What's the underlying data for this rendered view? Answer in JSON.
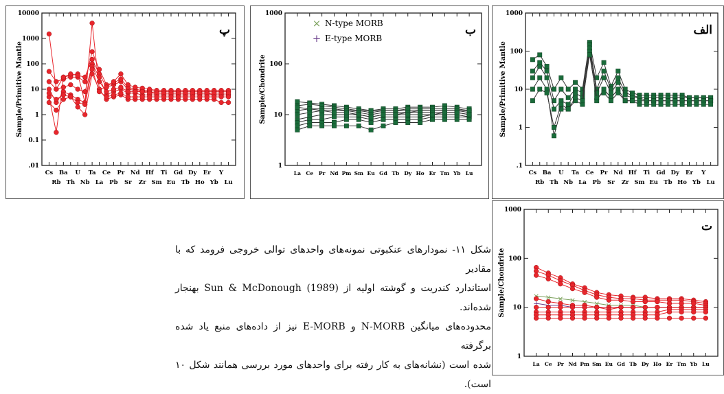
{
  "caption": {
    "lines": [
      "شکل ۱۱- نمودارهای عنکبوتی نمونه‌های واحدهای توالی خروجی فرومد که با مقادیر",
      "استاندارد کندریت و گوشته اولیه از (1989) Sun & McDonough بهنجار شده‌اند.",
      "محدوده‌های میانگین N-MORB و E-MORB نیز از داده‌های منبع یاد شده برگرفته",
      "شده است (نشانه‌های به کار رفته برای واحدهای مورد بررسی همانند شکل ۱۰ است)."
    ]
  },
  "colors": {
    "red": "#e8262c",
    "green": "#1a6b3a",
    "purple": "#6a3d8a",
    "lightgreen": "#7aa05a"
  },
  "chart_data": [
    {
      "id": "pe",
      "panel_letter": "پ",
      "type": "line",
      "ylabel": "Sample/Primitive Mantle",
      "yscale": "log",
      "ylim": [
        0.01,
        10000
      ],
      "ytick_labels": [
        ".01",
        "0.1",
        "1",
        "10",
        "100",
        "1000",
        "10000"
      ],
      "elements_top": [
        "Cs",
        "Ba",
        "U",
        "Ta",
        "Ce",
        "Pr",
        "Nd",
        "Hf",
        "Ti",
        "Gd",
        "Dy",
        "Er",
        "Y"
      ],
      "elements_bottom": [
        "Rb",
        "Th",
        "Nb",
        "La",
        "Pb",
        "Sr",
        "Zr",
        "Sm",
        "Eu",
        "Tb",
        "Ho",
        "Yb",
        "Lu"
      ],
      "marker": "circle",
      "color": "red",
      "series": [
        {
          "values": [
            1500,
            10,
            30,
            35,
            40,
            3,
            4000,
            10,
            12,
            15,
            20,
            10,
            9,
            8,
            8,
            7,
            7,
            7,
            7,
            7,
            7,
            7,
            7,
            6,
            6,
            6
          ]
        },
        {
          "values": [
            50,
            20,
            25,
            30,
            30,
            20,
            300,
            60,
            15,
            18,
            25,
            12,
            10,
            9,
            9,
            8,
            8,
            8,
            8,
            8,
            8,
            8,
            8,
            8,
            8,
            8
          ]
        },
        {
          "values": [
            5,
            0.2,
            30,
            40,
            35,
            30,
            150,
            40,
            12,
            20,
            40,
            15,
            12,
            11,
            10,
            9,
            9,
            9,
            9,
            9,
            9,
            9,
            9,
            9,
            9,
            9
          ]
        },
        {
          "values": [
            10,
            3,
            8,
            6,
            4,
            3,
            100,
            30,
            6,
            8,
            10,
            7,
            7,
            6,
            6,
            6,
            6,
            6,
            6,
            6,
            6,
            6,
            6,
            6,
            6,
            6
          ]
        },
        {
          "values": [
            20,
            10,
            12,
            15,
            10,
            8,
            80,
            20,
            8,
            10,
            12,
            8,
            8,
            8,
            7,
            7,
            7,
            7,
            7,
            7,
            7,
            7,
            7,
            7,
            7,
            7
          ]
        },
        {
          "values": [
            3,
            1.5,
            4,
            5,
            2,
            1,
            40,
            10,
            4,
            5,
            6,
            4,
            4,
            4,
            4,
            4,
            4,
            4,
            4,
            4,
            4,
            4,
            4,
            4,
            3,
            3
          ]
        },
        {
          "values": [
            7,
            4,
            6,
            5,
            3,
            2.5,
            60,
            8,
            5,
            6,
            7,
            5,
            5,
            5,
            5,
            5,
            5,
            5,
            5,
            5,
            5,
            5,
            5,
            5,
            5,
            5
          ]
        }
      ]
    },
    {
      "id": "be",
      "panel_letter": "ب",
      "type": "line",
      "ylabel": "Sample/Chondrite",
      "yscale": "log",
      "ylim": [
        1,
        1000
      ],
      "ytick_labels": [
        "1",
        "10",
        "100",
        "1000"
      ],
      "elements": [
        "La",
        "Ce",
        "Pr",
        "Nd",
        "Pm",
        "Sm",
        "Eu",
        "Gd",
        "Tb",
        "Dy",
        "Ho",
        "Er",
        "Tm",
        "Yb",
        "Lu"
      ],
      "legend": [
        {
          "label": "N-type MORB",
          "symbol": "×",
          "color": "lightgreen"
        },
        {
          "label": "E-type MORB",
          "symbol": "+",
          "color": "purple"
        }
      ],
      "marker": "square",
      "color": "green",
      "series": [
        {
          "values": [
            18,
            17,
            16,
            15,
            14,
            13,
            12,
            13,
            13,
            14,
            14,
            14,
            15,
            14,
            13
          ]
        },
        {
          "values": [
            15,
            16,
            15,
            14,
            13,
            12,
            11,
            12,
            12,
            12,
            12,
            12,
            12,
            12,
            11
          ]
        },
        {
          "values": [
            12,
            13,
            13,
            13,
            12,
            12,
            12,
            12,
            12,
            13,
            13,
            13,
            13,
            13,
            12
          ]
        },
        {
          "values": [
            10,
            11,
            12,
            12,
            12,
            11,
            10,
            11,
            11,
            11,
            12,
            12,
            12,
            12,
            12
          ]
        },
        {
          "values": [
            8,
            9,
            10,
            10,
            10,
            10,
            9,
            10,
            10,
            11,
            11,
            11,
            11,
            11,
            10
          ]
        },
        {
          "values": [
            7,
            8,
            8,
            9,
            9,
            9,
            8,
            9,
            9,
            9,
            9,
            10,
            10,
            10,
            9
          ]
        },
        {
          "values": [
            6,
            7,
            7,
            7,
            8,
            8,
            7,
            8,
            8,
            8,
            8,
            9,
            9,
            9,
            9
          ]
        },
        {
          "values": [
            5,
            6,
            6,
            6,
            6,
            6,
            5,
            6,
            7,
            7,
            7,
            8,
            8,
            8,
            8
          ]
        },
        {
          "values": [
            14,
            13,
            12,
            11,
            11,
            10,
            9,
            10,
            10,
            10,
            10,
            10,
            11,
            11,
            10
          ]
        }
      ]
    },
    {
      "id": "alef",
      "panel_letter": "الف",
      "type": "line",
      "ylabel": "Sample/Primitive Mantle",
      "yscale": "log",
      "ylim": [
        0.1,
        1000
      ],
      "ytick_labels": [
        ".1",
        "1",
        "10",
        "100",
        "1000"
      ],
      "elements_top": [
        "Cs",
        "Ba",
        "U",
        "Ta",
        "Ce",
        "Pr",
        "Nd",
        "Hf",
        "Ti",
        "Gd",
        "Dy",
        "Er",
        "Y"
      ],
      "elements_bottom": [
        "Rb",
        "Th",
        "Nb",
        "La",
        "Pb",
        "Sr",
        "Zr",
        "Sm",
        "Eu",
        "Tb",
        "Ho",
        "Yb",
        "Lu"
      ],
      "marker": "square",
      "color": "green",
      "series": [
        {
          "values": [
            60,
            80,
            40,
            10,
            20,
            10,
            15,
            10,
            170,
            20,
            50,
            12,
            30,
            10,
            8,
            7,
            7,
            7,
            7,
            7,
            7,
            7,
            6,
            6,
            6,
            6
          ]
        },
        {
          "values": [
            30,
            50,
            30,
            5,
            10,
            6,
            10,
            8,
            150,
            10,
            30,
            10,
            20,
            8,
            7,
            6,
            6,
            6,
            6,
            6,
            6,
            6,
            6,
            6,
            6,
            6
          ]
        },
        {
          "values": [
            20,
            40,
            20,
            3,
            5,
            4,
            8,
            6,
            120,
            8,
            20,
            8,
            15,
            7,
            6,
            6,
            5,
            5,
            5,
            5,
            5,
            5,
            5,
            5,
            5,
            5
          ]
        },
        {
          "values": [
            10,
            20,
            10,
            0.6,
            3,
            3,
            5,
            4,
            100,
            5,
            10,
            6,
            10,
            5,
            5,
            5,
            5,
            5,
            5,
            5,
            5,
            5,
            5,
            5,
            5,
            5
          ]
        },
        {
          "values": [
            5,
            10,
            8,
            1,
            4,
            3,
            6,
            5,
            80,
            6,
            8,
            5,
            8,
            5,
            5,
            4,
            4,
            4,
            4,
            4,
            4,
            4,
            4,
            4,
            4,
            4
          ]
        }
      ]
    },
    {
      "id": "te",
      "panel_letter": "ت",
      "type": "line",
      "ylabel": "Sample/Chondrite",
      "yscale": "log",
      "ylim": [
        1,
        1000
      ],
      "ytick_labels": [
        "1",
        "10",
        "100",
        "1000"
      ],
      "elements": [
        "La",
        "Ce",
        "Pr",
        "Nd",
        "Pm",
        "Sm",
        "Eu",
        "Gd",
        "Tb",
        "Dy",
        "Ho",
        "Er",
        "Tm",
        "Yb",
        "Lu"
      ],
      "marker": "circle",
      "color": "red",
      "series": [
        {
          "values": [
            65,
            50,
            40,
            30,
            25,
            20,
            18,
            17,
            16,
            16,
            15,
            15,
            15,
            14,
            13
          ]
        },
        {
          "values": [
            55,
            45,
            35,
            28,
            22,
            18,
            16,
            15,
            15,
            14,
            14,
            14,
            14,
            13,
            12
          ]
        },
        {
          "values": [
            45,
            38,
            30,
            24,
            20,
            16,
            14,
            14,
            13,
            13,
            13,
            12,
            12,
            12,
            11
          ]
        },
        {
          "values": [
            15,
            13,
            12,
            11,
            11,
            10,
            10,
            10,
            10,
            10,
            10,
            10,
            10,
            10,
            10
          ]
        },
        {
          "values": [
            10,
            10,
            10,
            10,
            10,
            10,
            9,
            10,
            10,
            10,
            10,
            10,
            10,
            10,
            10
          ]
        },
        {
          "values": [
            8,
            8,
            8,
            8,
            8,
            8,
            8,
            8,
            8,
            8,
            8,
            9,
            9,
            9,
            9
          ]
        },
        {
          "values": [
            7,
            7,
            7,
            7,
            7,
            7,
            7,
            7,
            7,
            7,
            7,
            8,
            8,
            8,
            8
          ]
        },
        {
          "values": [
            6,
            6,
            6,
            6,
            6,
            6,
            6,
            6,
            6,
            6,
            6,
            6,
            6,
            6,
            6
          ]
        }
      ],
      "reference_series": [
        {
          "symbol": "×",
          "color": "lightgreen",
          "values": [
            17,
            16,
            15,
            14,
            13,
            12,
            11,
            11,
            11,
            10,
            10,
            10,
            10,
            10,
            10
          ]
        },
        {
          "symbol": "+",
          "color": "purple",
          "values": [
            12,
            11,
            11,
            10,
            10,
            10,
            10,
            10,
            10,
            10,
            10,
            10,
            10,
            10,
            10
          ]
        }
      ]
    }
  ]
}
